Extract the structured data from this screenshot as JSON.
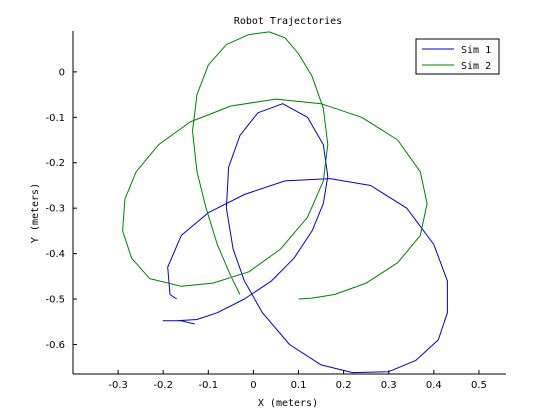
{
  "chart_data": {
    "type": "line",
    "title": "Robot Trajectories",
    "xlabel": "X (meters)",
    "ylabel": "Y (meters)",
    "xlim": [
      -0.4,
      0.56
    ],
    "ylim": [
      -0.665,
      0.09
    ],
    "x_ticks": [
      -0.3,
      -0.2,
      -0.1,
      0,
      0.1,
      0.2,
      0.3,
      0.4,
      0.5
    ],
    "x_tick_labels": [
      "-0.3",
      "-0.2",
      "-0.1",
      "0",
      "0.1",
      "0.2",
      "0.3",
      "0.4",
      "0.5"
    ],
    "y_ticks": [
      0,
      -0.1,
      -0.2,
      -0.3,
      -0.4,
      -0.5,
      -0.6
    ],
    "y_tick_labels": [
      "0",
      "-0.1",
      "-0.2",
      "-0.3",
      "-0.4",
      "-0.5",
      "-0.6"
    ],
    "grid": false,
    "legend_position": "top-right",
    "series": [
      {
        "name": "Sim 1",
        "color": "#0000cc",
        "points": [
          [
            -0.13,
            -0.555
          ],
          [
            -0.16,
            -0.548
          ],
          [
            -0.2,
            -0.548
          ],
          [
            -0.17,
            -0.548
          ],
          [
            -0.125,
            -0.545
          ],
          [
            -0.08,
            -0.53
          ],
          [
            -0.02,
            -0.5
          ],
          [
            0.04,
            -0.46
          ],
          [
            0.09,
            -0.41
          ],
          [
            0.13,
            -0.35
          ],
          [
            0.155,
            -0.29
          ],
          [
            0.165,
            -0.23
          ],
          [
            0.155,
            -0.16
          ],
          [
            0.12,
            -0.1
          ],
          [
            0.065,
            -0.07
          ],
          [
            0.01,
            -0.09
          ],
          [
            -0.03,
            -0.14
          ],
          [
            -0.055,
            -0.21
          ],
          [
            -0.06,
            -0.3
          ],
          [
            -0.045,
            -0.39
          ],
          [
            -0.02,
            -0.46
          ],
          [
            0.02,
            -0.53
          ],
          [
            0.08,
            -0.6
          ],
          [
            0.15,
            -0.645
          ],
          [
            0.22,
            -0.662
          ],
          [
            0.3,
            -0.66
          ],
          [
            0.36,
            -0.635
          ],
          [
            0.41,
            -0.59
          ],
          [
            0.43,
            -0.53
          ],
          [
            0.43,
            -0.46
          ],
          [
            0.4,
            -0.38
          ],
          [
            0.34,
            -0.3
          ],
          [
            0.26,
            -0.25
          ],
          [
            0.17,
            -0.235
          ],
          [
            0.07,
            -0.24
          ],
          [
            -0.02,
            -0.27
          ],
          [
            -0.1,
            -0.31
          ],
          [
            -0.16,
            -0.36
          ],
          [
            -0.19,
            -0.43
          ],
          [
            -0.185,
            -0.49
          ],
          [
            -0.17,
            -0.5
          ]
        ]
      },
      {
        "name": "Sim 2",
        "color": "#008000",
        "points": [
          [
            0.1,
            -0.5
          ],
          [
            0.13,
            -0.498
          ],
          [
            0.18,
            -0.49
          ],
          [
            0.25,
            -0.465
          ],
          [
            0.32,
            -0.42
          ],
          [
            0.37,
            -0.36
          ],
          [
            0.385,
            -0.29
          ],
          [
            0.37,
            -0.22
          ],
          [
            0.32,
            -0.15
          ],
          [
            0.24,
            -0.1
          ],
          [
            0.15,
            -0.07
          ],
          [
            0.05,
            -0.06
          ],
          [
            -0.05,
            -0.075
          ],
          [
            -0.14,
            -0.11
          ],
          [
            -0.21,
            -0.16
          ],
          [
            -0.26,
            -0.22
          ],
          [
            -0.285,
            -0.28
          ],
          [
            -0.29,
            -0.35
          ],
          [
            -0.27,
            -0.41
          ],
          [
            -0.23,
            -0.455
          ],
          [
            -0.16,
            -0.472
          ],
          [
            -0.09,
            -0.465
          ],
          [
            -0.01,
            -0.44
          ],
          [
            0.06,
            -0.39
          ],
          [
            0.12,
            -0.32
          ],
          [
            0.155,
            -0.24
          ],
          [
            0.165,
            -0.16
          ],
          [
            0.155,
            -0.08
          ],
          [
            0.13,
            -0.01
          ],
          [
            0.1,
            0.04
          ],
          [
            0.07,
            0.075
          ],
          [
            0.035,
            0.088
          ],
          [
            -0.01,
            0.082
          ],
          [
            -0.06,
            0.06
          ],
          [
            -0.1,
            0.015
          ],
          [
            -0.125,
            -0.05
          ],
          [
            -0.135,
            -0.13
          ],
          [
            -0.125,
            -0.22
          ],
          [
            -0.105,
            -0.3
          ],
          [
            -0.08,
            -0.38
          ],
          [
            -0.05,
            -0.45
          ],
          [
            -0.03,
            -0.49
          ]
        ]
      }
    ]
  }
}
